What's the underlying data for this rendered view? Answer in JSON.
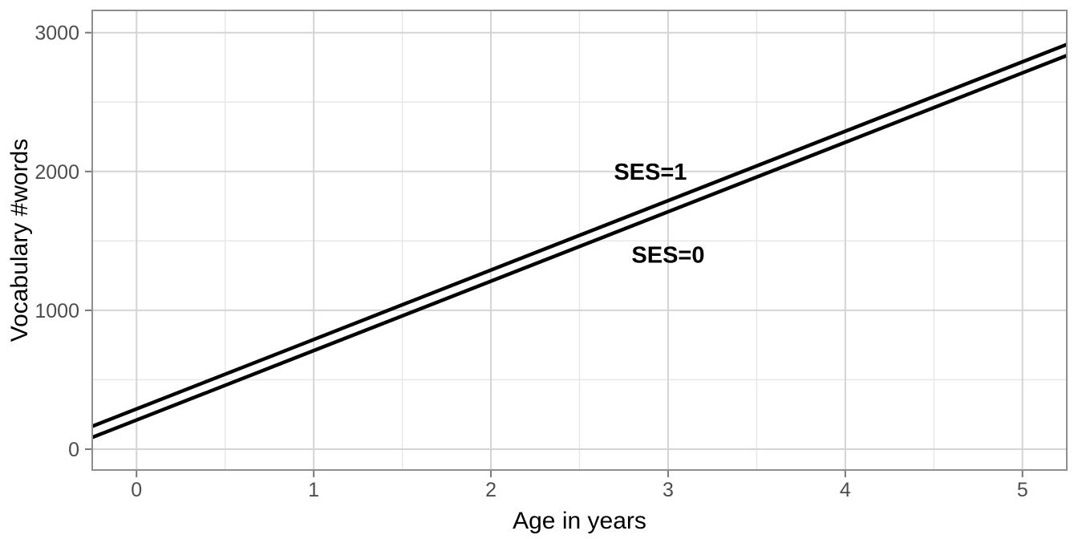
{
  "chart_data": {
    "type": "line",
    "title": "",
    "xlabel": "Age in years",
    "ylabel": "Vocabulary #words",
    "x_range": [
      -0.25,
      5.25
    ],
    "y_range": [
      -150,
      3160
    ],
    "x_ticks": [
      0,
      1,
      2,
      3,
      4,
      5
    ],
    "y_ticks": [
      0,
      1000,
      2000,
      3000
    ],
    "x_minor_ticks": [
      0.5,
      1.5,
      2.5,
      3.5,
      4.5
    ],
    "y_minor_ticks": [
      500,
      1500,
      2500
    ],
    "grid": "major and minor, light gray on white panel",
    "legend_position": "none (lines labeled directly on plot)",
    "series": [
      {
        "name": "SES=1",
        "intercept": 290,
        "slope": 500,
        "x_start": -0.25,
        "x_end": 5.25,
        "y_start": 165,
        "y_end": 2915,
        "color": "#000000"
      },
      {
        "name": "SES=0",
        "intercept": 210,
        "slope": 500,
        "x_start": -0.25,
        "x_end": 5.25,
        "y_start": 85,
        "y_end": 2835,
        "color": "#000000"
      }
    ],
    "annotations": [
      {
        "text": "SES=1",
        "x": 2.9,
        "y": 2000
      },
      {
        "text": "SES=0",
        "x": 3.0,
        "y": 1400
      }
    ]
  },
  "style": {
    "background": "#ffffff",
    "panel_background": "#ffffff",
    "panel_border_color": "#8f8f8f",
    "grid_major_color": "#d4d4d4",
    "grid_minor_color": "#e6e6e6",
    "tick_mark_color": "#787878",
    "tick_label_color": "#4d4d4d",
    "axis_title_color": "#000000",
    "annotation_color": "#000000",
    "line_color": "#000000"
  }
}
